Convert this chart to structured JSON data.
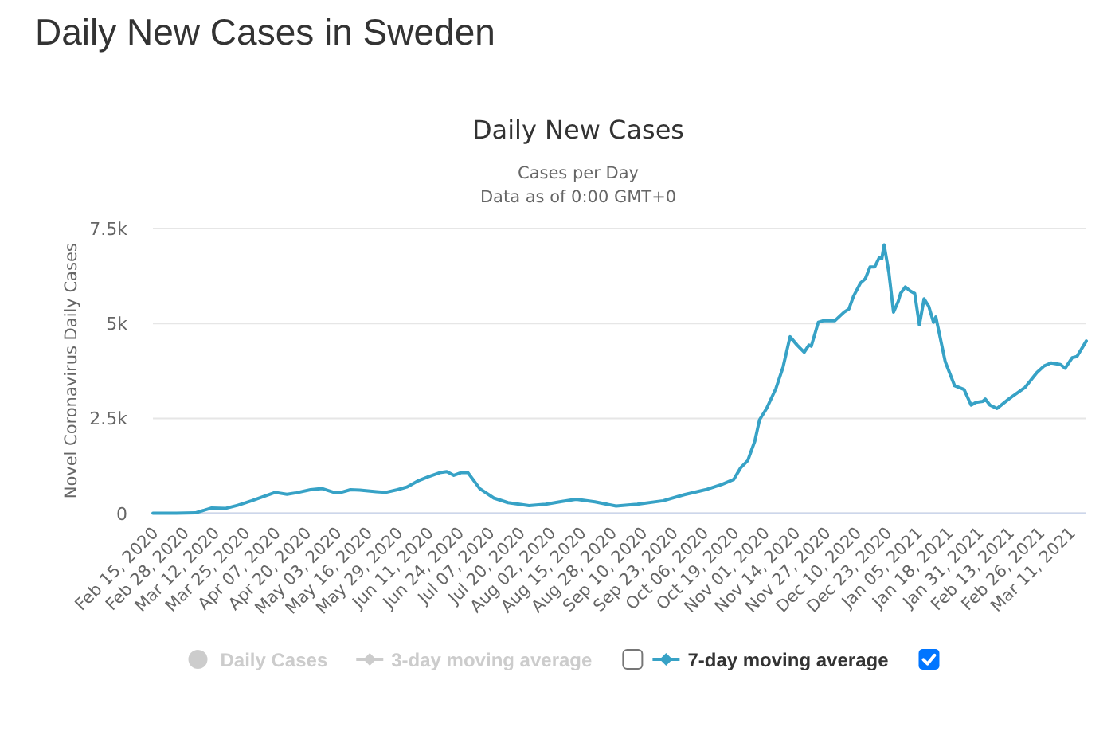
{
  "chart_data": {
    "type": "line",
    "title": "Daily New Cases in Sweden",
    "subtitle": "Daily New Cases",
    "annotations": [
      "Cases per Day",
      "Data as of 0:00 GMT+0"
    ],
    "ylabel": "Novel Coronavirus Daily Cases",
    "xlim": [
      "2020-02-15",
      "2021-03-18"
    ],
    "xticks": [
      {
        "value": "2020-02-15",
        "label": "Feb 15, 2020"
      },
      {
        "value": "2020-02-28",
        "label": "Feb 28, 2020"
      },
      {
        "value": "2020-03-12",
        "label": "Mar 12, 2020"
      },
      {
        "value": "2020-03-25",
        "label": "Mar 25, 2020"
      },
      {
        "value": "2020-04-07",
        "label": "Apr 07, 2020"
      },
      {
        "value": "2020-04-20",
        "label": "Apr 20, 2020"
      },
      {
        "value": "2020-05-03",
        "label": "May 03, 2020"
      },
      {
        "value": "2020-05-16",
        "label": "May 16, 2020"
      },
      {
        "value": "2020-05-29",
        "label": "May 29, 2020"
      },
      {
        "value": "2020-06-11",
        "label": "Jun 11, 2020"
      },
      {
        "value": "2020-06-24",
        "label": "Jun 24, 2020"
      },
      {
        "value": "2020-07-07",
        "label": "Jul 07, 2020"
      },
      {
        "value": "2020-07-20",
        "label": "Jul 20, 2020"
      },
      {
        "value": "2020-08-02",
        "label": "Aug 02, 2020"
      },
      {
        "value": "2020-08-15",
        "label": "Aug 15, 2020"
      },
      {
        "value": "2020-08-28",
        "label": "Aug 28, 2020"
      },
      {
        "value": "2020-09-10",
        "label": "Sep 10, 2020"
      },
      {
        "value": "2020-09-23",
        "label": "Sep 23, 2020"
      },
      {
        "value": "2020-10-06",
        "label": "Oct 06, 2020"
      },
      {
        "value": "2020-10-19",
        "label": "Oct 19, 2020"
      },
      {
        "value": "2020-11-01",
        "label": "Nov 01, 2020"
      },
      {
        "value": "2020-11-14",
        "label": "Nov 14, 2020"
      },
      {
        "value": "2020-11-27",
        "label": "Nov 27, 2020"
      },
      {
        "value": "2020-12-10",
        "label": "Dec 10, 2020"
      },
      {
        "value": "2020-12-23",
        "label": "Dec 23, 2020"
      },
      {
        "value": "2021-01-05",
        "label": "Jan 05, 2021"
      },
      {
        "value": "2021-01-18",
        "label": "Jan 18, 2021"
      },
      {
        "value": "2021-01-31",
        "label": "Jan 31, 2021"
      },
      {
        "value": "2021-02-13",
        "label": "Feb 13, 2021"
      },
      {
        "value": "2021-02-26",
        "label": "Feb 26, 2021"
      },
      {
        "value": "2021-03-11",
        "label": "Mar 11, 2021"
      }
    ],
    "ylim": [
      0,
      7500
    ],
    "yticks": [
      0,
      {
        "value": 2500,
        "label": "2.5k"
      },
      {
        "value": 5000,
        "label": "5k"
      },
      {
        "value": 7500,
        "label": "7.5k"
      }
    ],
    "grid": "y",
    "legend": "bottom",
    "series": [
      {
        "name": "Daily Cases",
        "type": "bar",
        "color": "#cccccc"
      },
      {
        "name": "3-day moving average",
        "color": "#cccccc"
      },
      {
        "name": "7-day moving average",
        "color": "#37a2c6",
        "x": [
          "2020-02-15",
          "2020-02-25",
          "2020-03-04",
          "2020-03-11",
          "2020-03-17",
          "2020-03-22",
          "2020-03-28",
          "2020-04-02",
          "2020-04-07",
          "2020-04-12",
          "2020-04-16",
          "2020-04-22",
          "2020-04-27",
          "2020-05-02",
          "2020-05-05",
          "2020-05-09",
          "2020-05-13",
          "2020-05-20",
          "2020-05-24",
          "2020-05-29",
          "2020-06-02",
          "2020-06-07",
          "2020-06-11",
          "2020-06-16",
          "2020-06-19",
          "2020-06-22",
          "2020-06-25",
          "2020-06-28",
          "2020-06-30",
          "2020-07-03",
          "2020-07-09",
          "2020-07-15",
          "2020-07-24",
          "2020-07-31",
          "2020-08-07",
          "2020-08-13",
          "2020-08-21",
          "2020-08-30",
          "2020-09-08",
          "2020-09-19",
          "2020-09-28",
          "2020-10-07",
          "2020-10-14",
          "2020-10-19",
          "2020-10-22",
          "2020-10-25",
          "2020-10-28",
          "2020-10-30",
          "2020-11-02",
          "2020-11-06",
          "2020-11-09",
          "2020-11-12",
          "2020-11-15",
          "2020-11-18",
          "2020-11-20",
          "2020-11-21",
          "2020-11-24",
          "2020-11-26",
          "2020-12-01",
          "2020-12-05",
          "2020-12-07",
          "2020-12-09",
          "2020-12-12",
          "2020-12-14",
          "2020-12-16",
          "2020-12-18",
          "2020-12-20",
          "2020-12-21",
          "2020-12-22",
          "2020-12-24",
          "2020-12-26",
          "2020-12-28",
          "2020-12-29",
          "2020-12-31",
          "2021-01-02",
          "2021-01-04",
          "2021-01-06",
          "2021-01-08",
          "2021-01-10",
          "2021-01-12",
          "2021-01-13",
          "2021-01-17",
          "2021-01-21",
          "2021-01-25",
          "2021-01-28",
          "2021-01-30",
          "2021-02-02",
          "2021-02-03",
          "2021-02-05",
          "2021-02-08",
          "2021-02-13",
          "2021-02-20",
          "2021-02-25",
          "2021-02-28",
          "2021-03-03",
          "2021-03-07",
          "2021-03-09",
          "2021-03-12",
          "2021-03-14",
          "2021-03-18"
        ],
        "values": [
          0,
          0,
          10,
          140,
          130,
          210,
          330,
          440,
          550,
          500,
          540,
          620,
          650,
          550,
          550,
          620,
          610,
          570,
          550,
          620,
          690,
          860,
          960,
          1070,
          1100,
          1000,
          1070,
          1070,
          900,
          650,
          400,
          280,
          200,
          240,
          310,
          370,
          300,
          190,
          240,
          330,
          490,
          620,
          760,
          890,
          1200,
          1390,
          1900,
          2460,
          2760,
          3290,
          3850,
          4650,
          4430,
          4240,
          4430,
          4400,
          5030,
          5070,
          5070,
          5300,
          5380,
          5720,
          6070,
          6180,
          6490,
          6490,
          6740,
          6700,
          7070,
          6350,
          5300,
          5580,
          5790,
          5960,
          5860,
          5790,
          4960,
          5650,
          5450,
          5030,
          5170,
          3990,
          3360,
          3260,
          2850,
          2920,
          2950,
          3010,
          2850,
          2760,
          3010,
          3320,
          3710,
          3880,
          3960,
          3920,
          3820,
          4100,
          4130,
          4540
        ]
      }
    ]
  }
}
